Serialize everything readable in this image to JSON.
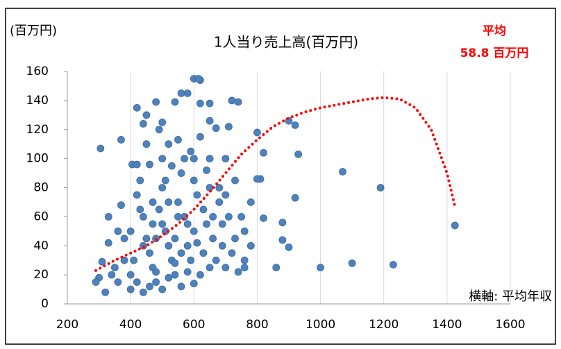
{
  "chart_data": {
    "type": "scatter",
    "title": "1人当り売上高(百万円)",
    "unit_label": "(百万円)",
    "annotation": [
      "平均",
      "58.8 百万円"
    ],
    "annotation_color": "#ff0000",
    "x_note": "横軸: 平均年収",
    "xlim": [
      200,
      1600
    ],
    "xticks": [
      200,
      400,
      600,
      800,
      1000,
      1200,
      1400,
      1600
    ],
    "ylim": [
      0,
      160
    ],
    "yticks": [
      0,
      20,
      40,
      60,
      80,
      100,
      120,
      140,
      160
    ],
    "grid": "x",
    "series": [
      {
        "color": "#4f81bd",
        "mode": "markers",
        "x": [
          305,
          310,
          370,
          720,
          740,
          800,
          820,
          810,
          800,
          930,
          900,
          920,
          1070,
          1190,
          1425,
          860,
          1000,
          1100,
          1230,
          880,
          820,
          920,
          880,
          900,
          750,
          760,
          780,
          760,
          740,
          600,
          620,
          615,
          580,
          560,
          540,
          480,
          420,
          440,
          405,
          490,
          450,
          650,
          620,
          650,
          670,
          710,
          700,
          650,
          600,
          550,
          520,
          500,
          460,
          420,
          300,
          290,
          330,
          330,
          370,
          360,
          380,
          350,
          320,
          400,
          410,
          420,
          430,
          440,
          450,
          460,
          470,
          480,
          490,
          500,
          510,
          520,
          530,
          540,
          550,
          560,
          570,
          580,
          590,
          600,
          610,
          620,
          630,
          640,
          650,
          660,
          670,
          680,
          690,
          700,
          710,
          720,
          730,
          400,
          420,
          440,
          460,
          480,
          500,
          520,
          540,
          560,
          580,
          600,
          440,
          470,
          520,
          560,
          600,
          380,
          360,
          340,
          450,
          500,
          530,
          570,
          620,
          640,
          680,
          700,
          730,
          780,
          760,
          400,
          430,
          470,
          510,
          550,
          590,
          630,
          660,
          480,
          500,
          540,
          580,
          610,
          650,
          690
        ],
        "values": [
          107,
          29,
          113,
          140,
          139,
          118,
          104,
          86,
          86,
          103,
          126,
          123,
          91,
          80,
          54,
          25,
          25,
          28,
          27,
          56,
          59,
          73,
          44,
          39,
          60,
          50,
          70,
          25,
          22,
          155,
          154,
          155,
          145,
          145,
          139,
          139,
          135,
          124,
          96,
          120,
          130,
          138,
          138,
          126,
          121,
          122,
          100,
          100,
          100,
          113,
          110,
          100,
          96,
          96,
          18,
          15,
          60,
          42,
          68,
          50,
          45,
          25,
          8,
          20,
          30,
          75,
          85,
          60,
          45,
          35,
          25,
          15,
          65,
          80,
          50,
          40,
          30,
          20,
          70,
          90,
          60,
          40,
          30,
          50,
          75,
          20,
          35,
          55,
          80,
          45,
          30,
          70,
          40,
          25,
          60,
          35,
          45,
          10,
          15,
          8,
          12,
          22,
          10,
          18,
          28,
          12,
          22,
          14,
          40,
          55,
          70,
          35,
          85,
          30,
          15,
          20,
          110,
          125,
          95,
          100,
          115,
          92,
          80,
          75,
          85,
          40,
          30,
          50,
          65,
          70,
          85,
          60,
          105,
          65,
          60,
          45,
          55,
          45,
          55,
          42,
          25,
          55
        ]
      },
      {
        "color": "#ff0000",
        "mode": "dotted",
        "x": [
          290,
          350,
          400,
          450,
          500,
          550,
          600,
          650,
          700,
          750,
          800,
          850,
          900,
          950,
          1000,
          1050,
          1100,
          1150,
          1200,
          1250,
          1300,
          1350,
          1400,
          1425
        ],
        "values": [
          23,
          30,
          35,
          40,
          47,
          55,
          65,
          77,
          90,
          103,
          113,
          122,
          128,
          132,
          135,
          137,
          139,
          141,
          142,
          141,
          135,
          120,
          90,
          67
        ]
      }
    ]
  }
}
